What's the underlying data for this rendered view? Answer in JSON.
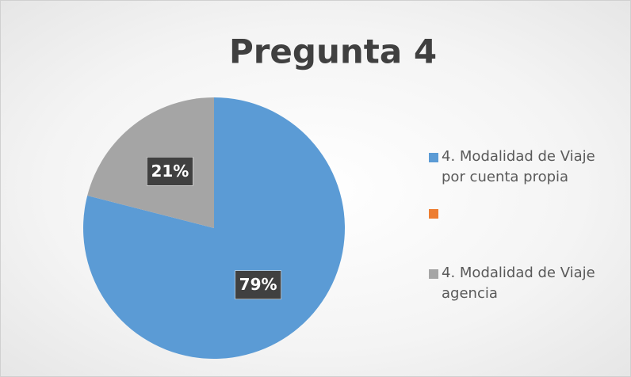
{
  "chart_data": {
    "type": "pie",
    "title": "Pregunta 4",
    "categories": [
      "4. Modalidad de Viaje por cuenta propia",
      null,
      "4. Modalidad de Viaje agencia"
    ],
    "values": [
      79,
      0,
      21
    ],
    "value_labels": [
      "79%",
      null,
      "21%"
    ],
    "colors": [
      "#5b9bd5",
      "#ed7d31",
      "#a5a5a5"
    ],
    "legend": "right"
  }
}
